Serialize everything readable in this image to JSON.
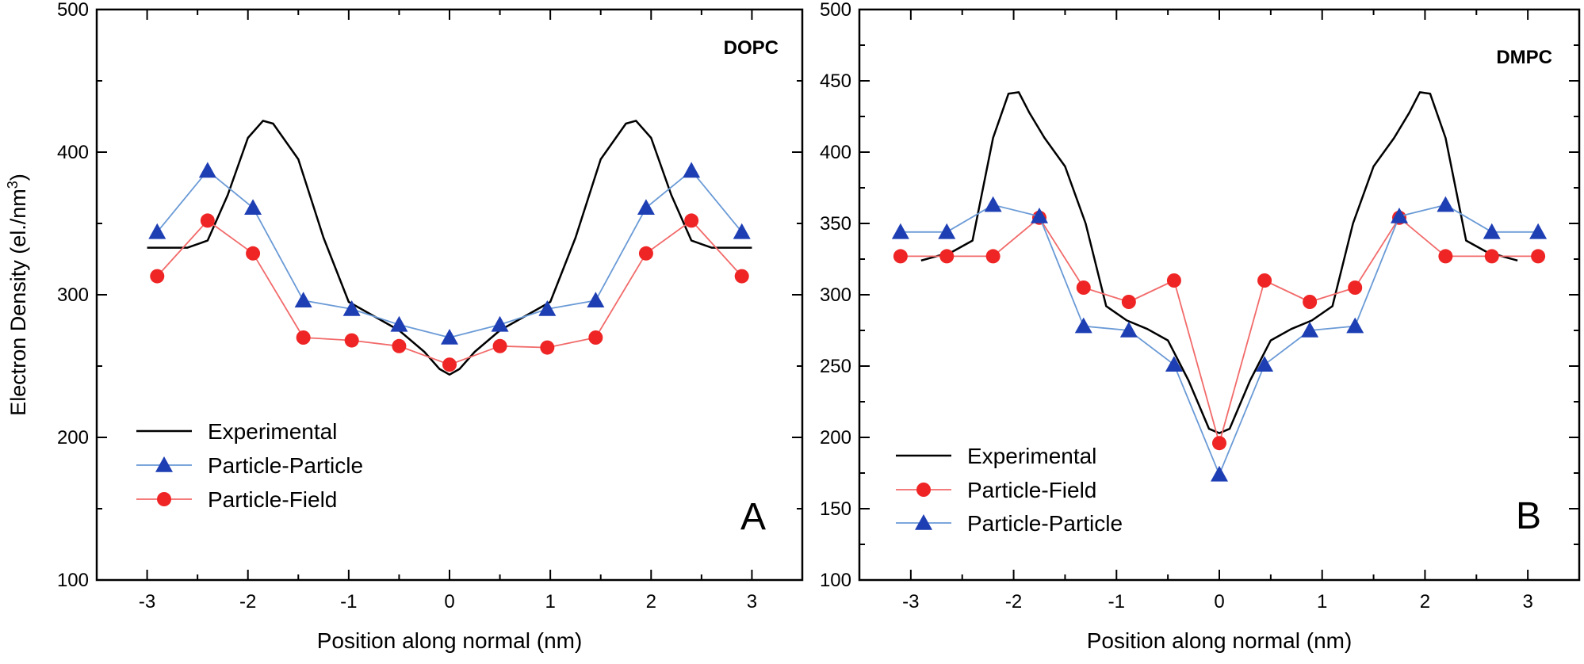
{
  "chart_data": [
    {
      "type": "line",
      "panel_letter": "A",
      "tag": "DOPC",
      "xlabel": "Position along normal (nm)",
      "ylabel": "Electron Density (el./nm",
      "ylabel_sup": "3",
      "ylabel_close": ")",
      "xlim": [
        -3.5,
        3.5
      ],
      "ylim": [
        100,
        500
      ],
      "xticks": [
        -3,
        -2,
        -1,
        0,
        1,
        2,
        3
      ],
      "xtick_labels": [
        "-3",
        "-2",
        "-1",
        "0",
        "1",
        "2",
        "3"
      ],
      "yticks": [
        100,
        200,
        300,
        400,
        500
      ],
      "ytick_labels": [
        "100",
        "200",
        "300",
        "400",
        "500"
      ],
      "minor_xstep": 0.5,
      "minor_ystep": 50,
      "legend_position": "bottom-left",
      "series": [
        {
          "name": "Experimental",
          "color": "#000000",
          "marker": "none",
          "x": [
            -3,
            -2.6,
            -2.4,
            -2.2,
            -2.0,
            -1.85,
            -1.75,
            -1.5,
            -1.25,
            -1.0,
            -0.75,
            -0.5,
            -0.25,
            -0.1,
            0,
            0.1,
            0.25,
            0.5,
            0.75,
            1.0,
            1.25,
            1.5,
            1.75,
            1.85,
            2.0,
            2.2,
            2.4,
            2.6,
            3.0
          ],
          "y": [
            333,
            333,
            338,
            370,
            410,
            422,
            420,
            395,
            340,
            295,
            285,
            275,
            260,
            248,
            244,
            248,
            260,
            275,
            285,
            295,
            340,
            395,
            420,
            422,
            410,
            370,
            338,
            333,
            333
          ]
        },
        {
          "name": "Particle-Particle",
          "color": "#6a9ad6",
          "marker_color": "#1e3fb4",
          "marker": "triangle",
          "x": [
            -2.9,
            -2.4,
            -1.95,
            -1.45,
            -0.97,
            -0.5,
            0,
            0.5,
            0.97,
            1.45,
            1.95,
            2.4,
            2.9
          ],
          "y": [
            344,
            387,
            361,
            296,
            290,
            279,
            270,
            279,
            290,
            296,
            361,
            387,
            344
          ]
        },
        {
          "name": "Particle-Field",
          "color": "#f26a6a",
          "marker_color": "#ef2525",
          "marker": "circle",
          "x": [
            -2.9,
            -2.4,
            -1.95,
            -1.45,
            -0.97,
            -0.5,
            0,
            0.5,
            0.97,
            1.45,
            1.95,
            2.4,
            2.9
          ],
          "y": [
            313,
            352,
            329,
            270,
            268,
            264,
            251,
            264,
            263,
            270,
            329,
            352,
            313
          ]
        }
      ]
    },
    {
      "type": "line",
      "panel_letter": "B",
      "tag": "DMPC",
      "xlabel": "Position along normal (nm)",
      "ylabel": "",
      "xlim": [
        -3.5,
        3.5
      ],
      "ylim": [
        100,
        500
      ],
      "xticks": [
        -3,
        -2,
        -1,
        0,
        1,
        2,
        3
      ],
      "xtick_labels": [
        "-3",
        "-2",
        "-1",
        "0",
        "1",
        "2",
        "3"
      ],
      "yticks": [
        100,
        150,
        200,
        250,
        300,
        350,
        400,
        450,
        500
      ],
      "ytick_labels": [
        "100",
        "150",
        "200",
        "250",
        "300",
        "350",
        "400",
        "450",
        "500"
      ],
      "minor_xstep": 0.5,
      "minor_ystep": 25,
      "legend_position": "bottom-left",
      "series": [
        {
          "name": "Experimental",
          "color": "#000000",
          "marker": "none",
          "x": [
            -2.9,
            -2.6,
            -2.4,
            -2.2,
            -2.05,
            -1.95,
            -1.85,
            -1.7,
            -1.5,
            -1.3,
            -1.1,
            -0.9,
            -0.7,
            -0.5,
            -0.3,
            -0.1,
            0,
            0.1,
            0.3,
            0.5,
            0.7,
            0.9,
            1.1,
            1.3,
            1.5,
            1.7,
            1.85,
            1.95,
            2.05,
            2.2,
            2.4,
            2.6,
            2.9
          ],
          "y": [
            324,
            330,
            338,
            410,
            441,
            442,
            428,
            410,
            390,
            350,
            292,
            282,
            276,
            268,
            240,
            206,
            203,
            206,
            240,
            268,
            276,
            282,
            292,
            350,
            390,
            410,
            428,
            442,
            441,
            410,
            338,
            330,
            324
          ]
        },
        {
          "name": "Particle-Field",
          "color": "#f26a6a",
          "marker_color": "#ef2525",
          "marker": "circle",
          "x": [
            -3.1,
            -2.65,
            -2.2,
            -1.75,
            -1.32,
            -0.88,
            -0.44,
            0,
            0.44,
            0.88,
            1.32,
            1.75,
            2.2,
            2.65,
            3.1
          ],
          "y": [
            327,
            327,
            327,
            354,
            305,
            295,
            310,
            196,
            310,
            295,
            305,
            354,
            327,
            327,
            327
          ]
        },
        {
          "name": "Particle-Particle",
          "color": "#6a9ad6",
          "marker_color": "#1e3fb4",
          "marker": "triangle",
          "x": [
            -3.1,
            -2.65,
            -2.2,
            -1.75,
            -1.32,
            -0.88,
            -0.44,
            0,
            0.44,
            0.88,
            1.32,
            1.75,
            2.2,
            2.65,
            3.1
          ],
          "y": [
            344,
            344,
            363,
            355,
            278,
            275,
            251,
            174,
            251,
            275,
            278,
            355,
            363,
            344,
            344
          ]
        }
      ]
    }
  ]
}
